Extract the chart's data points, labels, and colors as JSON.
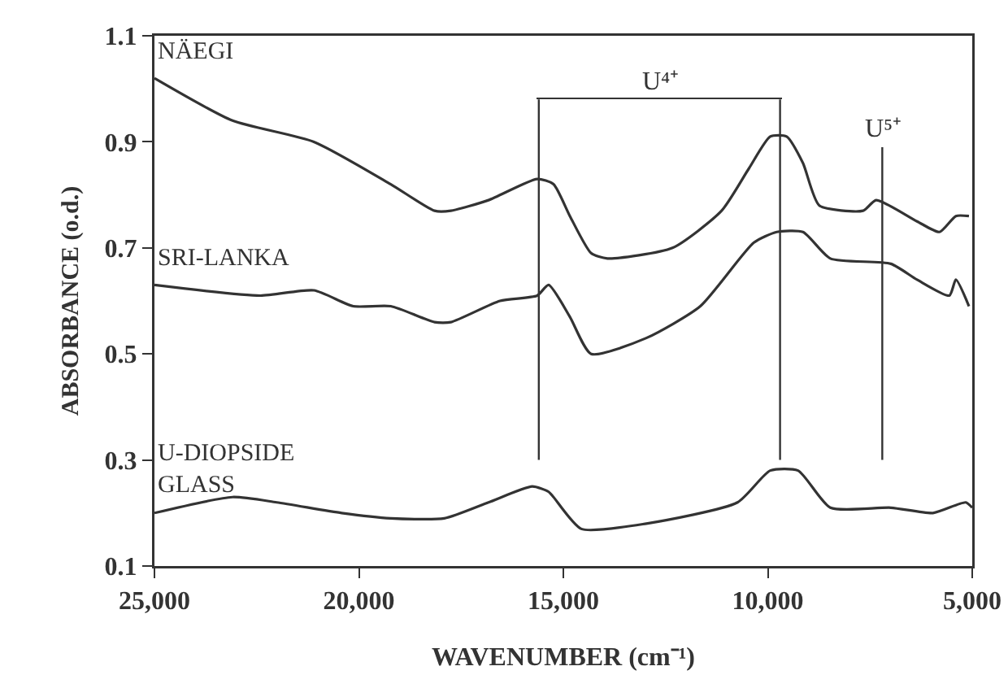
{
  "chart_data": {
    "type": "line",
    "xlabel": "WAVENUMBER (cm⁻¹)",
    "ylabel": "ABSORBANCE (o.d.)",
    "xlim": [
      25000,
      5000
    ],
    "xticks": [
      {
        "value": 25000,
        "label": "25,000"
      },
      {
        "value": 20000,
        "label": "20,000"
      },
      {
        "value": 15000,
        "label": "15,000"
      },
      {
        "value": 10000,
        "label": "10,000"
      },
      {
        "value": 5000,
        "label": "5,000"
      }
    ],
    "ylim": [
      0.1,
      1.1
    ],
    "yticks": [
      0.1,
      0.3,
      0.5,
      0.7,
      0.9,
      1.1
    ],
    "grid": false,
    "legend": false,
    "marker": "none",
    "line_style": "solid",
    "series": [
      {
        "name": "NÄEGI",
        "color": "#333333",
        "x": [
          25000,
          23090,
          21100,
          19220,
          18150,
          17750,
          16830,
          15640,
          15240,
          14840,
          14320,
          13920,
          12330,
          11130,
          10460,
          9940,
          9540,
          9140,
          8740,
          7670,
          7350,
          6350,
          5800,
          5400,
          5080
        ],
        "values": [
          1.02,
          0.94,
          0.9,
          0.82,
          0.77,
          0.77,
          0.79,
          0.83,
          0.82,
          0.76,
          0.69,
          0.68,
          0.7,
          0.77,
          0.85,
          0.91,
          0.91,
          0.86,
          0.78,
          0.77,
          0.79,
          0.75,
          0.73,
          0.76,
          0.76
        ]
      },
      {
        "name": "SRI-LANKA",
        "color": "#333333",
        "x": [
          25000,
          22410,
          21100,
          20140,
          19220,
          18150,
          17750,
          16550,
          15640,
          15360,
          14840,
          14320,
          12970,
          11650,
          10340,
          9780,
          9140,
          8470,
          6990,
          6350,
          5560,
          5400,
          5080
        ],
        "values": [
          0.63,
          0.61,
          0.62,
          0.59,
          0.59,
          0.56,
          0.56,
          0.6,
          0.61,
          0.63,
          0.57,
          0.5,
          0.53,
          0.59,
          0.71,
          0.73,
          0.73,
          0.68,
          0.67,
          0.64,
          0.61,
          0.64,
          0.59
        ]
      },
      {
        "name": "U-DIOPSIDE\nGLASS",
        "color": "#333333",
        "x": [
          25000,
          23090,
          22010,
          20420,
          19220,
          17910,
          16830,
          15760,
          15360,
          15240,
          14560,
          12970,
          10740,
          9940,
          9260,
          8470,
          6990,
          5960,
          5160,
          5000
        ],
        "values": [
          0.2,
          0.23,
          0.22,
          0.2,
          0.19,
          0.19,
          0.22,
          0.25,
          0.24,
          0.23,
          0.17,
          0.18,
          0.22,
          0.28,
          0.28,
          0.21,
          0.21,
          0.2,
          0.22,
          0.21
        ]
      }
    ],
    "ref_lines": [
      {
        "axis": "x",
        "value": 15600,
        "label": null
      },
      {
        "axis": "x",
        "value": 9700,
        "label": null
      },
      {
        "axis": "x",
        "value": 7200,
        "label": "U⁵⁺"
      }
    ],
    "annotations": [
      "U⁴⁺"
    ]
  }
}
